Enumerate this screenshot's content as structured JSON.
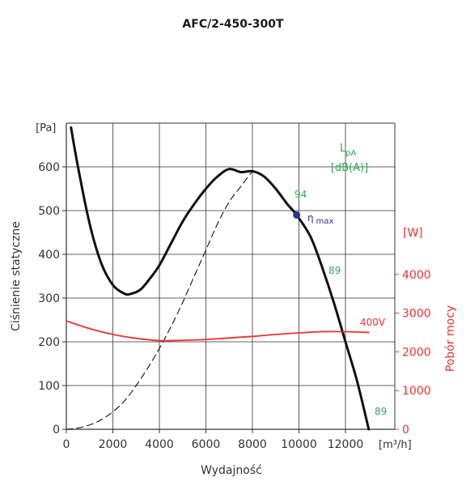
{
  "chart_data": {
    "type": "line",
    "title": "AFC/2-450-300T",
    "xlabel": "Wydajność",
    "xunit": "[m³/h]",
    "ylabel": "Ciśnienie statyczne",
    "yunit": "[Pa]",
    "y2label": "Pobór mocy",
    "y2unit": "[W]",
    "xlim": [
      0,
      14000
    ],
    "ylim": [
      0,
      700
    ],
    "y2lim": [
      0,
      5000
    ],
    "grid": true,
    "x_ticks": [
      {
        "value": 0,
        "label": "0"
      },
      {
        "value": 2000,
        "label": "2000"
      },
      {
        "value": 4000,
        "label": "4000"
      },
      {
        "value": 6000,
        "label": "6000"
      },
      {
        "value": 8000,
        "label": "8000"
      },
      {
        "value": 10000,
        "label": "10000"
      },
      {
        "value": 12000,
        "label": "12000"
      }
    ],
    "y_ticks": [
      {
        "value": 0,
        "label": "0"
      },
      {
        "value": 100,
        "label": "100"
      },
      {
        "value": 200,
        "label": "200"
      },
      {
        "value": 300,
        "label": "300"
      },
      {
        "value": 400,
        "label": "400"
      },
      {
        "value": 500,
        "label": "500"
      },
      {
        "value": 600,
        "label": "600"
      }
    ],
    "y2_ticks": [
      {
        "value": 0,
        "label": "0"
      },
      {
        "value": 1000,
        "label": "1000"
      },
      {
        "value": 2000,
        "label": "2000"
      },
      {
        "value": 3000,
        "label": "3000"
      },
      {
        "value": 4000,
        "label": "4000"
      }
    ],
    "series": [
      {
        "axis": "y",
        "style": "solid",
        "color": "#111111",
        "x": [
          200,
          500,
          1000,
          1500,
          2000,
          2500,
          2800,
          3200,
          3600,
          4000,
          4500,
          5000,
          5500,
          6000,
          6500,
          7000,
          7500,
          8000,
          8500,
          9000,
          9500,
          9900,
          10500,
          11000,
          11500,
          12000,
          12500,
          13000
        ],
        "y": [
          690,
          600,
          470,
          380,
          330,
          310,
          310,
          320,
          345,
          375,
          425,
          475,
          515,
          550,
          578,
          595,
          588,
          590,
          578,
          550,
          515,
          490,
          440,
          370,
          290,
          200,
          110,
          0
        ]
      },
      {
        "axis": "y",
        "style": "dashed",
        "color": "#111111",
        "x": [
          0,
          500,
          1000,
          1500,
          2000,
          2500,
          3000,
          3500,
          4000,
          4500,
          5000,
          5500,
          6000,
          6500,
          7000,
          7500,
          8000
        ],
        "y": [
          0,
          3,
          10,
          22,
          40,
          65,
          100,
          140,
          185,
          235,
          290,
          350,
          410,
          470,
          520,
          555,
          590
        ]
      },
      {
        "axis": "y2",
        "style": "solid",
        "color": "#e8332f",
        "name": "400V",
        "x": [
          0,
          1000,
          2000,
          3000,
          4000,
          5000,
          6000,
          7000,
          8000,
          9000,
          10000,
          11000,
          12000,
          13000
        ],
        "y": [
          2800,
          2600,
          2450,
          2350,
          2290,
          2300,
          2320,
          2360,
          2400,
          2450,
          2490,
          2520,
          2520,
          2500
        ]
      }
    ],
    "annotations": {
      "lpa": "L",
      "lpa_sub": "pA",
      "lpa_unit": "[dB(A)]",
      "db_94": "94",
      "db_89_mid": "89",
      "db_89_low": "89",
      "eta": "η",
      "eta_sub": "max",
      "voltage": "400V",
      "eta_point": {
        "x": 9900,
        "y": 490
      }
    }
  }
}
